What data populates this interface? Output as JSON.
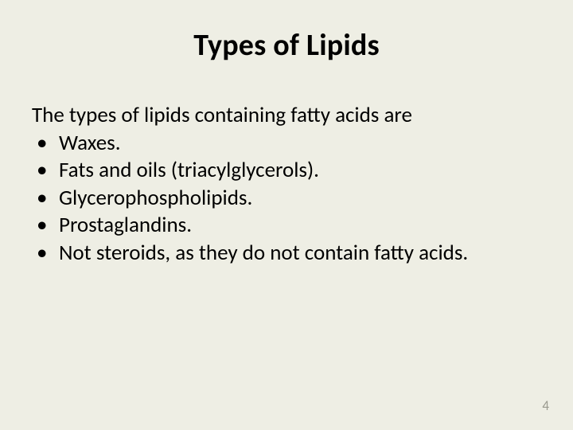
{
  "slide": {
    "background_color": "#eeeee4",
    "text_color": "#000000",
    "title": "Types of Lipids",
    "title_fontsize": 38,
    "title_fontweight": 700,
    "intro": "The types of lipids containing fatty acids are",
    "body_fontsize": 27,
    "bullets": [
      "Waxes.",
      "Fats and oils (triacylglycerols).",
      "Glycerophospholipids.",
      "Prostaglandins.",
      "Not steroids, as they do not contain fatty acids."
    ],
    "page_number": "4",
    "page_number_color": "#9a9a8f",
    "page_number_fontsize": 17
  }
}
